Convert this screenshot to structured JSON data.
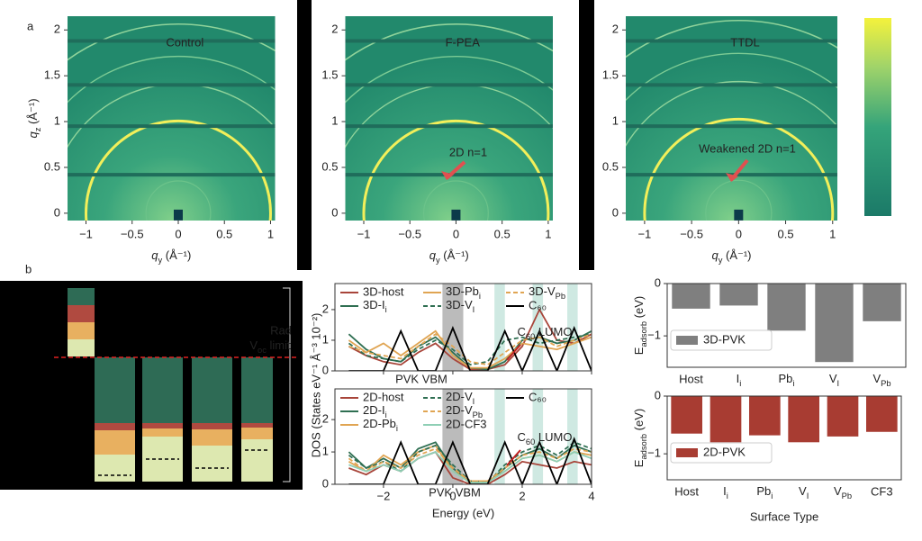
{
  "figure": {
    "panel_labels": [
      "a",
      "b"
    ],
    "rad_label": "Rad",
    "voc_label": {
      "text": "V",
      "sub": "oc",
      "rest": " limit"
    }
  },
  "chart_data": [
    {
      "type": "image",
      "title": "Control",
      "x_label": {
        "text": "q",
        "sub": "y",
        "rest": " (Å⁻¹)"
      },
      "y_label": {
        "text": "q",
        "sub": "z",
        "rest": " (Å⁻¹)"
      },
      "xlim": [
        -1.2,
        1.05
      ],
      "ylim": [
        -0.08,
        2.15
      ],
      "xticks": [
        {
          "value": -1,
          "label": "−1"
        },
        {
          "value": -0.5,
          "label": "−0.5"
        },
        0,
        0.5,
        1
      ],
      "yticks": [
        0,
        0.5,
        1,
        1.5,
        2
      ]
    },
    {
      "type": "image",
      "title": "F-PEA",
      "annotation": "2D n=1",
      "x_label": {
        "text": "q",
        "sub": "y",
        "rest": " (Å⁻¹)"
      },
      "xlim": [
        -1.2,
        1.05
      ],
      "ylim": [
        -0.08,
        2.15
      ],
      "xticks": [
        {
          "value": -1,
          "label": "−1"
        },
        {
          "value": -0.5,
          "label": "−0.5"
        },
        0,
        0.5,
        1
      ],
      "yticks": [
        0,
        0.5,
        1,
        1.5,
        2
      ]
    },
    {
      "type": "image",
      "title": "TTDL",
      "annotation": "Weakened 2D n=1",
      "x_label": {
        "text": "q",
        "sub": "y",
        "rest": " (Å⁻¹)"
      },
      "xlim": [
        -1.2,
        1.05
      ],
      "ylim": [
        -0.08,
        2.15
      ],
      "xticks": [
        {
          "value": -1,
          "label": "−1"
        },
        {
          "value": -0.5,
          "label": "−0.5"
        },
        0,
        0.5,
        1
      ],
      "yticks": [
        0,
        0.5,
        1,
        1.5,
        2
      ]
    },
    {
      "type": "line",
      "y_label": "DOS (States eV⁻¹ Å⁻³ 10⁻²)",
      "annotations": [
        {
          "text": "C",
          "sub": "60",
          "rest": " LUMO"
        },
        "PVK VBM"
      ],
      "xlim": [
        -3.4,
        4
      ],
      "ylim": [
        0,
        2.85
      ],
      "xticks": [
        -2,
        0,
        2,
        4
      ],
      "yticks": [
        0,
        1,
        2
      ],
      "x": [
        -3,
        -2.5,
        -2,
        -1.5,
        -1,
        -0.5,
        0,
        0.5,
        1,
        1.5,
        2,
        2.5,
        3,
        3.5,
        4
      ],
      "series": [
        {
          "name": "3D-host",
          "color": "#a8453a",
          "dash": false,
          "values": [
            0.8,
            0.5,
            0.3,
            0.2,
            0.6,
            0.9,
            0.4,
            0.05,
            0.05,
            0.2,
            0.8,
            2.0,
            1.0,
            0.9,
            1.2
          ]
        },
        {
          "name": {
            "text": "3D-I",
            "sub": "i"
          },
          "color": "#2f6f52",
          "dash": false,
          "values": [
            1.2,
            0.7,
            0.4,
            0.3,
            0.8,
            1.1,
            0.6,
            0.1,
            0.05,
            0.3,
            1.0,
            1.1,
            0.9,
            1.0,
            1.3
          ]
        },
        {
          "name": {
            "text": "3D-Pb",
            "sub": "i"
          },
          "color": "#e0a553",
          "dash": false,
          "values": [
            1.0,
            0.6,
            0.9,
            0.5,
            0.9,
            1.3,
            0.5,
            0.1,
            0.1,
            0.4,
            0.9,
            0.8,
            0.7,
            0.9,
            1.1
          ]
        },
        {
          "name": {
            "text": "3D-V",
            "sub": "I"
          },
          "color": "#2f6f52",
          "dash": true,
          "values": [
            0.9,
            0.5,
            0.4,
            0.3,
            0.7,
            1.0,
            0.7,
            0.2,
            0.3,
            1.0,
            1.1,
            0.9,
            1.0,
            1.1,
            1.2
          ]
        },
        {
          "name": {
            "text": "3D-V",
            "sub": "Pb"
          },
          "color": "#e0a553",
          "dash": true,
          "values": [
            0.8,
            0.6,
            0.5,
            0.4,
            0.8,
            1.2,
            0.8,
            0.3,
            0.2,
            0.6,
            1.0,
            1.1,
            0.8,
            1.0,
            1.2
          ]
        },
        {
          "name": "C₆₀",
          "color": "#000000",
          "dash": false,
          "values": [
            0,
            0,
            0,
            1.3,
            0,
            0,
            1.4,
            0,
            0,
            1.3,
            0,
            1.3,
            0,
            1.4,
            0
          ]
        }
      ]
    },
    {
      "type": "line",
      "x_label": "Energy (eV)",
      "annotations": [
        {
          "text": "C",
          "sub": "60",
          "rest": " LUMO"
        },
        "PVK VBM"
      ],
      "xlim": [
        -3.4,
        4
      ],
      "ylim": [
        0,
        2.95
      ],
      "xticks": [
        {
          "value": -2,
          "label": "−2"
        },
        0,
        2,
        4
      ],
      "yticks": [
        0,
        1,
        2
      ],
      "x": [
        -3,
        -2.5,
        -2,
        -1.5,
        -1,
        -0.5,
        0,
        0.5,
        1,
        1.5,
        2,
        2.5,
        3,
        3.5,
        4
      ],
      "series": [
        {
          "name": "2D-host",
          "color": "#a8453a",
          "dash": false,
          "values": [
            0.5,
            0.3,
            0.6,
            0.4,
            0.8,
            1.0,
            0.2,
            0.0,
            0.0,
            0.3,
            0.7,
            0.6,
            0.5,
            0.7,
            0.6
          ]
        },
        {
          "name": {
            "text": "2D-I",
            "sub": "i"
          },
          "color": "#2f6f52",
          "dash": false,
          "values": [
            1.0,
            0.5,
            0.8,
            0.5,
            1.1,
            1.3,
            0.5,
            0.05,
            0.05,
            0.5,
            0.9,
            1.1,
            0.8,
            1.2,
            1.0
          ]
        },
        {
          "name": {
            "text": "2D-Pb",
            "sub": "i"
          },
          "color": "#e0a553",
          "dash": false,
          "values": [
            0.7,
            0.4,
            0.9,
            0.6,
            1.0,
            1.2,
            0.4,
            0.1,
            0.1,
            0.4,
            0.8,
            0.9,
            0.7,
            1.0,
            0.9
          ]
        },
        {
          "name": {
            "text": "2D-V",
            "sub": "I"
          },
          "color": "#2f6f52",
          "dash": true,
          "values": [
            0.9,
            0.5,
            0.7,
            0.4,
            1.0,
            1.2,
            0.6,
            0.1,
            0.05,
            0.6,
            1.0,
            1.2,
            0.9,
            1.3,
            1.1
          ]
        },
        {
          "name": {
            "text": "2D-V",
            "sub": "Pb"
          },
          "color": "#e0a553",
          "dash": true,
          "values": [
            0.8,
            0.4,
            0.7,
            0.5,
            0.9,
            1.1,
            0.5,
            0.1,
            0.1,
            0.5,
            0.9,
            1.0,
            0.8,
            1.1,
            1.0
          ]
        },
        {
          "name": "2D-CF3",
          "color": "#8fcfb5",
          "dash": false,
          "values": [
            0.6,
            0.4,
            0.6,
            0.4,
            0.8,
            1.0,
            0.4,
            0.05,
            0.05,
            0.4,
            0.8,
            0.9,
            0.7,
            1.0,
            0.8
          ]
        },
        {
          "name": "C₆₀",
          "color": "#000000",
          "dash": false,
          "values": [
            0,
            0,
            0,
            1.3,
            0,
            0,
            1.3,
            0,
            0,
            1.3,
            0,
            1.3,
            0,
            1.4,
            0
          ]
        }
      ]
    },
    {
      "type": "bar",
      "y_label": {
        "text": "E",
        "sub": "adsorb",
        "rest": " (eV)"
      },
      "legend": "lower left",
      "categories": [
        "Host",
        {
          "text": "I",
          "sub": "i"
        },
        {
          "text": "Pb",
          "sub": "i"
        },
        {
          "text": "V",
          "sub": "I"
        },
        {
          "text": "V",
          "sub": "Pb"
        }
      ],
      "series": [
        {
          "name": "3D-PVK",
          "color": "#7f7f7f",
          "values": [
            -0.48,
            -0.42,
            -0.9,
            -1.5,
            -0.72
          ]
        }
      ],
      "ylim": [
        -1.6,
        0
      ],
      "yticks": [
        {
          "value": -1,
          "label": "−1"
        },
        0
      ]
    },
    {
      "type": "bar",
      "y_label": {
        "text": "E",
        "sub": "adsorb",
        "rest": " (eV)"
      },
      "x_label": "Surface Type",
      "legend": "lower left",
      "categories": [
        "Host",
        {
          "text": "I",
          "sub": "i"
        },
        {
          "text": "Pb",
          "sub": "i"
        },
        {
          "text": "V",
          "sub": "I"
        },
        {
          "text": "V",
          "sub": "Pb"
        },
        "CF3"
      ],
      "series": [
        {
          "name": "2D-PVK",
          "color": "#a83c32",
          "values": [
            -0.65,
            -0.8,
            -0.68,
            -0.8,
            -0.7,
            -0.62
          ]
        }
      ],
      "ylim": [
        -1.45,
        0
      ],
      "yticks": [
        {
          "value": -1,
          "label": "−1"
        },
        0
      ]
    }
  ]
}
